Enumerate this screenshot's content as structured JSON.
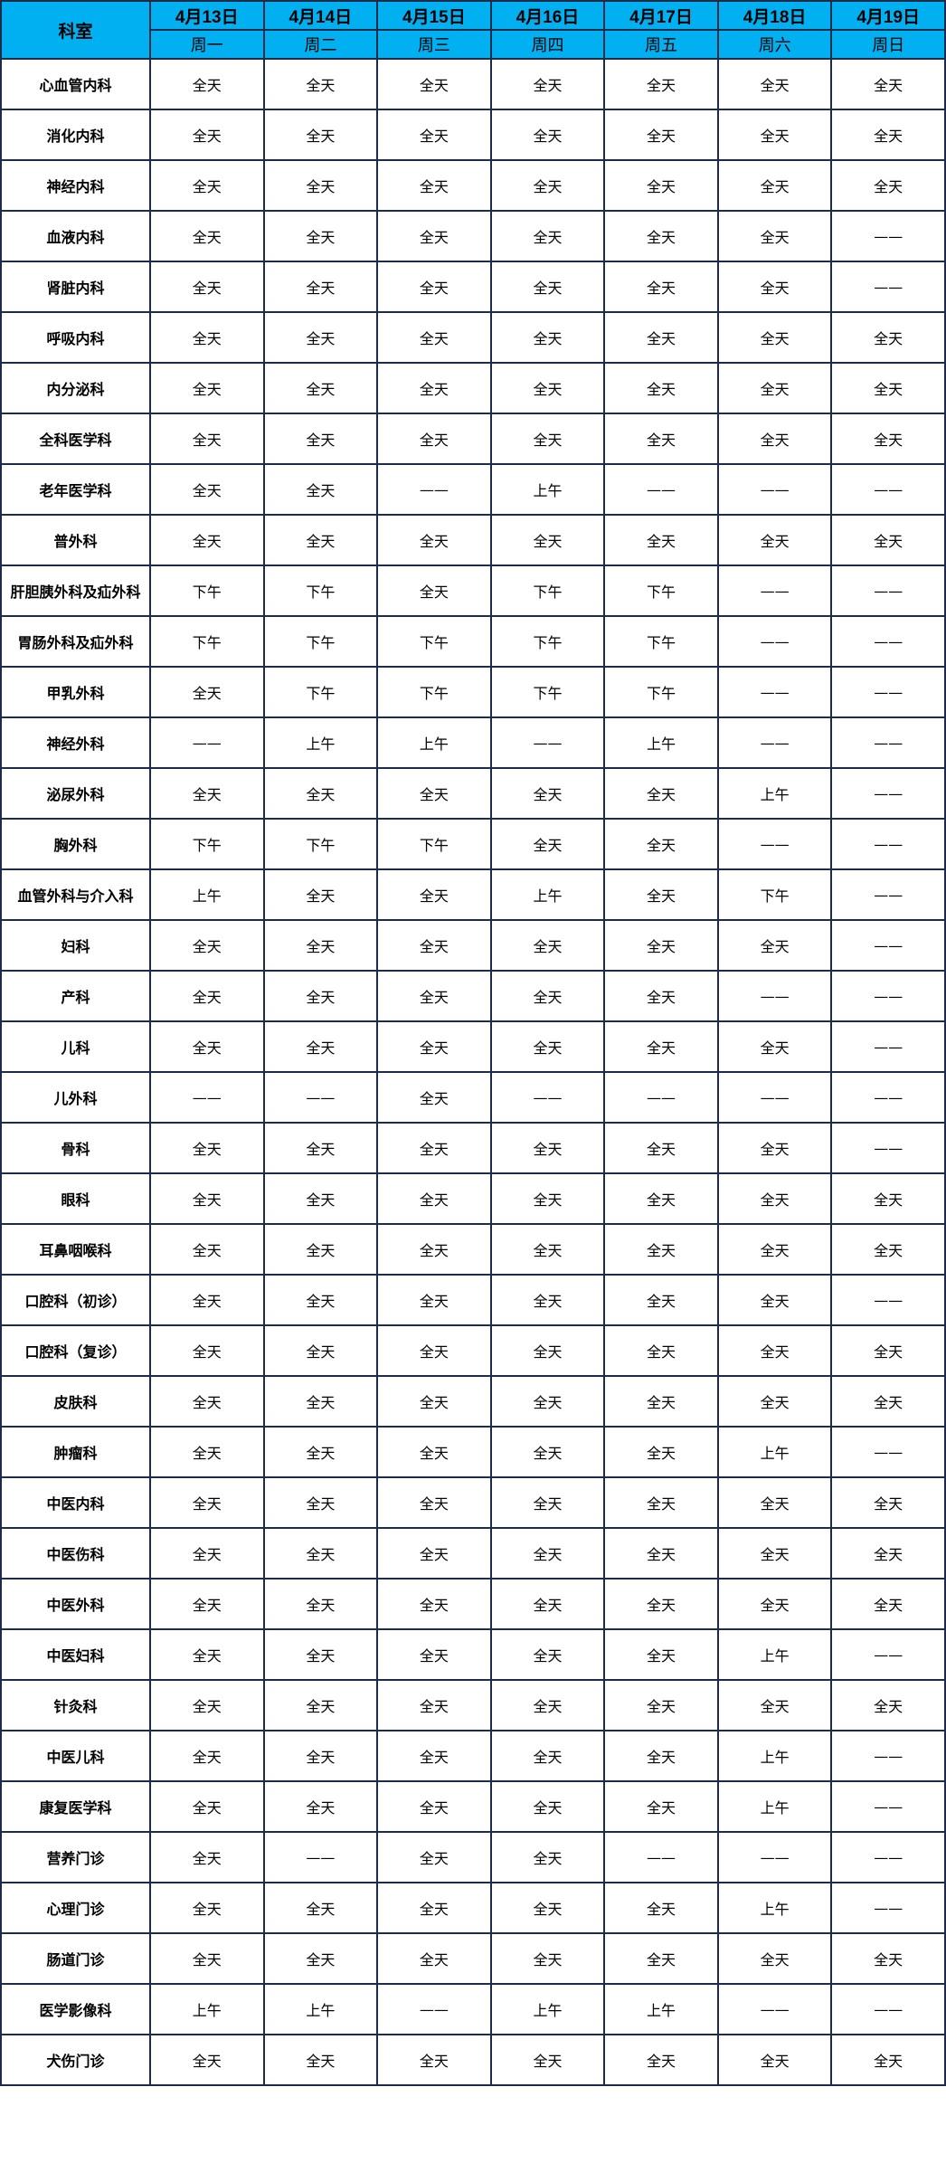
{
  "header": {
    "dept_label": "科室",
    "days": [
      {
        "date": "4月13日",
        "weekday": "周一"
      },
      {
        "date": "4月14日",
        "weekday": "周二"
      },
      {
        "date": "4月15日",
        "weekday": "周三"
      },
      {
        "date": "4月16日",
        "weekday": "周四"
      },
      {
        "date": "4月17日",
        "weekday": "周五"
      },
      {
        "date": "4月18日",
        "weekday": "周六"
      },
      {
        "date": "4月19日",
        "weekday": "周日"
      }
    ]
  },
  "colors": {
    "header_bg": "#00b0f0",
    "border": "#1c2b4a"
  },
  "rows": [
    {
      "dept": "心血管内科",
      "slots": [
        "全天",
        "全天",
        "全天",
        "全天",
        "全天",
        "全天",
        "全天"
      ]
    },
    {
      "dept": "消化内科",
      "slots": [
        "全天",
        "全天",
        "全天",
        "全天",
        "全天",
        "全天",
        "全天"
      ]
    },
    {
      "dept": "神经内科",
      "slots": [
        "全天",
        "全天",
        "全天",
        "全天",
        "全天",
        "全天",
        "全天"
      ]
    },
    {
      "dept": "血液内科",
      "slots": [
        "全天",
        "全天",
        "全天",
        "全天",
        "全天",
        "全天",
        "——"
      ]
    },
    {
      "dept": "肾脏内科",
      "slots": [
        "全天",
        "全天",
        "全天",
        "全天",
        "全天",
        "全天",
        "——"
      ]
    },
    {
      "dept": "呼吸内科",
      "slots": [
        "全天",
        "全天",
        "全天",
        "全天",
        "全天",
        "全天",
        "全天"
      ]
    },
    {
      "dept": "内分泌科",
      "slots": [
        "全天",
        "全天",
        "全天",
        "全天",
        "全天",
        "全天",
        "全天"
      ]
    },
    {
      "dept": "全科医学科",
      "slots": [
        "全天",
        "全天",
        "全天",
        "全天",
        "全天",
        "全天",
        "全天"
      ]
    },
    {
      "dept": "老年医学科",
      "slots": [
        "全天",
        "全天",
        "——",
        "上午",
        "——",
        "——",
        "——"
      ]
    },
    {
      "dept": "普外科",
      "slots": [
        "全天",
        "全天",
        "全天",
        "全天",
        "全天",
        "全天",
        "全天"
      ]
    },
    {
      "dept": "肝胆胰外科及疝外科",
      "slots": [
        "下午",
        "下午",
        "全天",
        "下午",
        "下午",
        "——",
        "——"
      ]
    },
    {
      "dept": "胃肠外科及疝外科",
      "slots": [
        "下午",
        "下午",
        "下午",
        "下午",
        "下午",
        "——",
        "——"
      ]
    },
    {
      "dept": "甲乳外科",
      "slots": [
        "全天",
        "下午",
        "下午",
        "下午",
        "下午",
        "——",
        "——"
      ]
    },
    {
      "dept": "神经外科",
      "slots": [
        "——",
        "上午",
        "上午",
        "——",
        "上午",
        "——",
        "——"
      ]
    },
    {
      "dept": "泌尿外科",
      "slots": [
        "全天",
        "全天",
        "全天",
        "全天",
        "全天",
        "上午",
        "——"
      ]
    },
    {
      "dept": "胸外科",
      "slots": [
        "下午",
        "下午",
        "下午",
        "全天",
        "全天",
        "——",
        "——"
      ]
    },
    {
      "dept": "血管外科与介入科",
      "slots": [
        "上午",
        "全天",
        "全天",
        "上午",
        "全天",
        "下午",
        "——"
      ]
    },
    {
      "dept": "妇科",
      "slots": [
        "全天",
        "全天",
        "全天",
        "全天",
        "全天",
        "全天",
        "——"
      ]
    },
    {
      "dept": "产科",
      "slots": [
        "全天",
        "全天",
        "全天",
        "全天",
        "全天",
        "——",
        "——"
      ]
    },
    {
      "dept": "儿科",
      "slots": [
        "全天",
        "全天",
        "全天",
        "全天",
        "全天",
        "全天",
        "——"
      ]
    },
    {
      "dept": "儿外科",
      "slots": [
        "——",
        "——",
        "全天",
        "——",
        "——",
        "——",
        "——"
      ]
    },
    {
      "dept": "骨科",
      "slots": [
        "全天",
        "全天",
        "全天",
        "全天",
        "全天",
        "全天",
        "——"
      ]
    },
    {
      "dept": "眼科",
      "slots": [
        "全天",
        "全天",
        "全天",
        "全天",
        "全天",
        "全天",
        "全天"
      ]
    },
    {
      "dept": "耳鼻咽喉科",
      "slots": [
        "全天",
        "全天",
        "全天",
        "全天",
        "全天",
        "全天",
        "全天"
      ]
    },
    {
      "dept": "口腔科（初诊）",
      "slots": [
        "全天",
        "全天",
        "全天",
        "全天",
        "全天",
        "全天",
        "——"
      ]
    },
    {
      "dept": "口腔科（复诊）",
      "slots": [
        "全天",
        "全天",
        "全天",
        "全天",
        "全天",
        "全天",
        "全天"
      ]
    },
    {
      "dept": "皮肤科",
      "slots": [
        "全天",
        "全天",
        "全天",
        "全天",
        "全天",
        "全天",
        "全天"
      ]
    },
    {
      "dept": "肿瘤科",
      "slots": [
        "全天",
        "全天",
        "全天",
        "全天",
        "全天",
        "上午",
        "——"
      ]
    },
    {
      "dept": "中医内科",
      "slots": [
        "全天",
        "全天",
        "全天",
        "全天",
        "全天",
        "全天",
        "全天"
      ]
    },
    {
      "dept": "中医伤科",
      "slots": [
        "全天",
        "全天",
        "全天",
        "全天",
        "全天",
        "全天",
        "全天"
      ]
    },
    {
      "dept": "中医外科",
      "slots": [
        "全天",
        "全天",
        "全天",
        "全天",
        "全天",
        "全天",
        "全天"
      ]
    },
    {
      "dept": "中医妇科",
      "slots": [
        "全天",
        "全天",
        "全天",
        "全天",
        "全天",
        "上午",
        "——"
      ]
    },
    {
      "dept": "针灸科",
      "slots": [
        "全天",
        "全天",
        "全天",
        "全天",
        "全天",
        "全天",
        "全天"
      ]
    },
    {
      "dept": "中医儿科",
      "slots": [
        "全天",
        "全天",
        "全天",
        "全天",
        "全天",
        "上午",
        "——"
      ]
    },
    {
      "dept": "康复医学科",
      "slots": [
        "全天",
        "全天",
        "全天",
        "全天",
        "全天",
        "上午",
        "——"
      ]
    },
    {
      "dept": "营养门诊",
      "slots": [
        "全天",
        "——",
        "全天",
        "全天",
        "——",
        "——",
        "——"
      ]
    },
    {
      "dept": "心理门诊",
      "slots": [
        "全天",
        "全天",
        "全天",
        "全天",
        "全天",
        "上午",
        "——"
      ]
    },
    {
      "dept": "肠道门诊",
      "slots": [
        "全天",
        "全天",
        "全天",
        "全天",
        "全天",
        "全天",
        "全天"
      ]
    },
    {
      "dept": "医学影像科",
      "slots": [
        "上午",
        "上午",
        "——",
        "上午",
        "上午",
        "——",
        "——"
      ]
    },
    {
      "dept": "犬伤门诊",
      "slots": [
        "全天",
        "全天",
        "全天",
        "全天",
        "全天",
        "全天",
        "全天"
      ]
    }
  ]
}
